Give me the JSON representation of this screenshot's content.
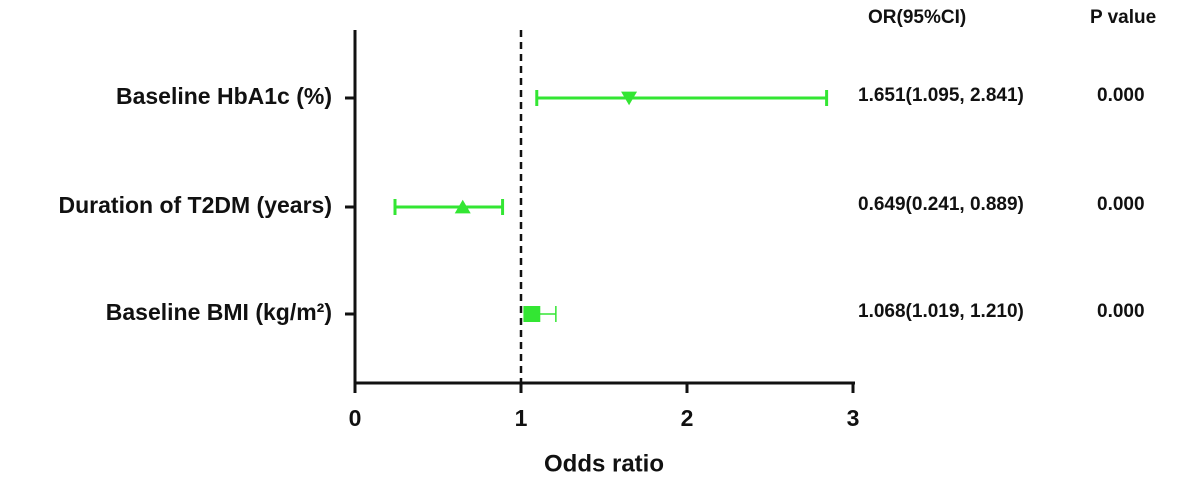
{
  "chart_data": {
    "type": "forest",
    "categories": [
      "Baseline HbA1c (%)",
      "Duration of T2DM (years)",
      "Baseline BMI (kg/m²)"
    ],
    "values": [
      1.651,
      0.649,
      1.068
    ],
    "lower": [
      1.095,
      0.241,
      1.019
    ],
    "upper": [
      2.841,
      0.889,
      1.21
    ],
    "value_labels": [
      "1.651(1.095, 2.841)",
      "0.649(0.241, 0.889)",
      "1.068(1.019, 1.210)"
    ],
    "p_values": [
      "0.000",
      "0.000",
      "0.000"
    ],
    "column_headers": [
      "OR(95%CI)",
      "P value"
    ],
    "markers": [
      "triangle-down",
      "triangle-up",
      "square"
    ],
    "color": "#33e633",
    "reference_line": 1,
    "xlabel": "Odds ratio",
    "xlim": [
      0,
      3
    ],
    "xticks": [
      0,
      1,
      2,
      3
    ]
  }
}
